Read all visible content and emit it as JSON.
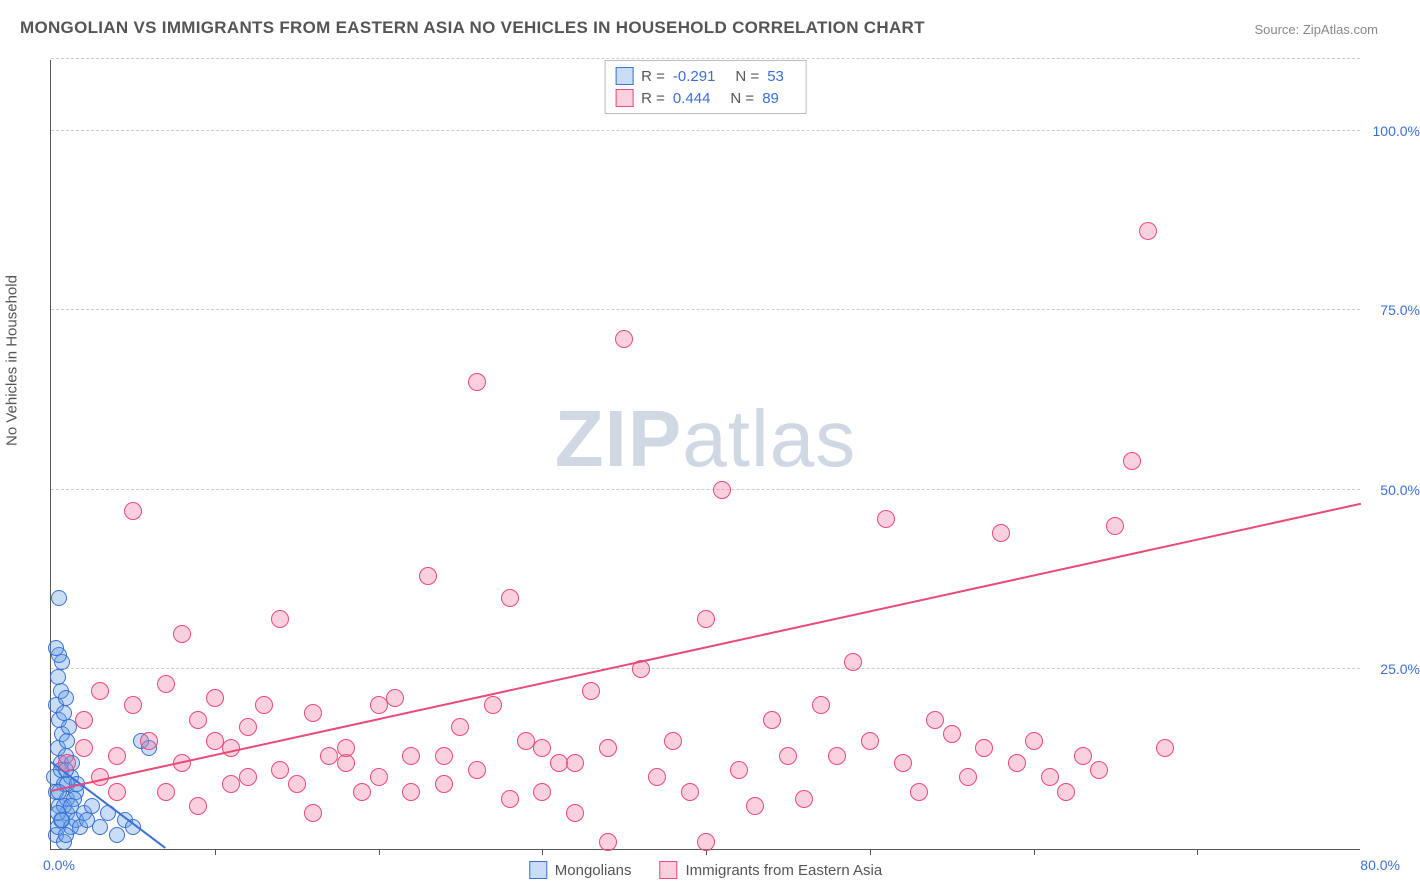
{
  "title": "MONGOLIAN VS IMMIGRANTS FROM EASTERN ASIA NO VEHICLES IN HOUSEHOLD CORRELATION CHART",
  "source": "Source: ZipAtlas.com",
  "ylabel": "No Vehicles in Household",
  "watermark_bold": "ZIP",
  "watermark_light": "atlas",
  "chart": {
    "type": "scatter",
    "xlim": [
      0,
      80
    ],
    "ylim": [
      0,
      110
    ],
    "x_tick_step": 10,
    "y_gridlines": [
      25,
      50,
      75,
      100,
      110
    ],
    "y_tick_labels": [
      "25.0%",
      "50.0%",
      "75.0%",
      "100.0%"
    ],
    "x_axis_labels": [
      {
        "val": 0,
        "text": "0.0%"
      },
      {
        "val": 80,
        "text": "80.0%"
      }
    ],
    "background_color": "#ffffff",
    "grid_color": "#cccccc",
    "series": [
      {
        "name": "Mongolians",
        "fill_color": "rgba(100,160,230,0.35)",
        "stroke_color": "#3b6fd6",
        "marker_radius": 8,
        "r_value": "-0.291",
        "n_value": "53",
        "trend": {
          "x1": 0,
          "y1": 12,
          "x2": 7,
          "y2": 0
        },
        "points": [
          [
            0.5,
            35
          ],
          [
            0.3,
            2
          ],
          [
            0.4,
            3
          ],
          [
            0.6,
            4
          ],
          [
            0.8,
            1
          ],
          [
            1.0,
            5
          ],
          [
            0.5,
            6
          ],
          [
            1.2,
            3
          ],
          [
            0.3,
            8
          ],
          [
            0.9,
            2
          ],
          [
            1.5,
            4
          ],
          [
            0.2,
            10
          ],
          [
            0.6,
            12
          ],
          [
            1.0,
            7
          ],
          [
            0.8,
            9
          ],
          [
            1.8,
            3
          ],
          [
            2.0,
            5
          ],
          [
            0.4,
            14
          ],
          [
            0.7,
            16
          ],
          [
            1.2,
            10
          ],
          [
            0.5,
            18
          ],
          [
            0.9,
            13
          ],
          [
            1.5,
            8
          ],
          [
            0.3,
            20
          ],
          [
            0.6,
            22
          ],
          [
            1.0,
            15
          ],
          [
            0.8,
            19
          ],
          [
            1.3,
            12
          ],
          [
            0.4,
            24
          ],
          [
            0.7,
            26
          ],
          [
            1.1,
            17
          ],
          [
            0.5,
            27
          ],
          [
            0.9,
            21
          ],
          [
            0.3,
            28
          ],
          [
            0.6,
            11
          ],
          [
            1.0,
            9
          ],
          [
            0.8,
            6
          ],
          [
            1.4,
            7
          ],
          [
            0.4,
            5
          ],
          [
            0.7,
            4
          ],
          [
            1.2,
            6
          ],
          [
            0.5,
            8
          ],
          [
            0.9,
            11
          ],
          [
            1.6,
            9
          ],
          [
            2.2,
            4
          ],
          [
            2.5,
            6
          ],
          [
            3.0,
            3
          ],
          [
            3.5,
            5
          ],
          [
            4.0,
            2
          ],
          [
            4.5,
            4
          ],
          [
            5.0,
            3
          ],
          [
            5.5,
            15
          ],
          [
            6.0,
            14
          ]
        ]
      },
      {
        "name": "Immigrants from Eastern Asia",
        "fill_color": "rgba(240,120,160,0.35)",
        "stroke_color": "#e84a7a",
        "marker_radius": 9,
        "r_value": "0.444",
        "n_value": "89",
        "trend": {
          "x1": 0,
          "y1": 8,
          "x2": 80,
          "y2": 48
        },
        "points": [
          [
            1,
            12
          ],
          [
            2,
            14
          ],
          [
            3,
            10
          ],
          [
            4,
            13
          ],
          [
            2,
            18
          ],
          [
            3,
            22
          ],
          [
            5,
            20
          ],
          [
            6,
            15
          ],
          [
            4,
            8
          ],
          [
            7,
            23
          ],
          [
            8,
            12
          ],
          [
            5,
            47
          ],
          [
            9,
            18
          ],
          [
            10,
            21
          ],
          [
            11,
            14
          ],
          [
            12,
            10
          ],
          [
            8,
            30
          ],
          [
            13,
            20
          ],
          [
            14,
            32
          ],
          [
            15,
            9
          ],
          [
            16,
            5
          ],
          [
            17,
            13
          ],
          [
            18,
            12
          ],
          [
            19,
            8
          ],
          [
            20,
            20
          ],
          [
            21,
            21
          ],
          [
            22,
            13
          ],
          [
            23,
            38
          ],
          [
            24,
            9
          ],
          [
            25,
            17
          ],
          [
            26,
            65
          ],
          [
            27,
            20
          ],
          [
            28,
            35
          ],
          [
            29,
            15
          ],
          [
            30,
            8
          ],
          [
            31,
            12
          ],
          [
            32,
            5
          ],
          [
            33,
            22
          ],
          [
            34,
            14
          ],
          [
            35,
            71
          ],
          [
            36,
            25
          ],
          [
            37,
            10
          ],
          [
            38,
            15
          ],
          [
            39,
            8
          ],
          [
            40,
            32
          ],
          [
            41,
            50
          ],
          [
            42,
            11
          ],
          [
            43,
            6
          ],
          [
            44,
            18
          ],
          [
            45,
            13
          ],
          [
            46,
            7
          ],
          [
            47,
            20
          ],
          [
            48,
            13
          ],
          [
            49,
            26
          ],
          [
            50,
            15
          ],
          [
            51,
            46
          ],
          [
            52,
            12
          ],
          [
            53,
            8
          ],
          [
            54,
            18
          ],
          [
            55,
            16
          ],
          [
            56,
            10
          ],
          [
            57,
            14
          ],
          [
            58,
            44
          ],
          [
            59,
            12
          ],
          [
            60,
            15
          ],
          [
            61,
            10
          ],
          [
            62,
            8
          ],
          [
            63,
            13
          ],
          [
            64,
            11
          ],
          [
            65,
            45
          ],
          [
            66,
            54
          ],
          [
            67,
            86
          ],
          [
            68,
            14
          ],
          [
            10,
            15
          ],
          [
            12,
            17
          ],
          [
            14,
            11
          ],
          [
            16,
            19
          ],
          [
            18,
            14
          ],
          [
            20,
            10
          ],
          [
            22,
            8
          ],
          [
            24,
            13
          ],
          [
            26,
            11
          ],
          [
            28,
            7
          ],
          [
            30,
            14
          ],
          [
            32,
            12
          ],
          [
            34,
            1
          ],
          [
            7,
            8
          ],
          [
            9,
            6
          ],
          [
            11,
            9
          ],
          [
            40,
            1
          ]
        ]
      }
    ]
  },
  "legend_bottom": [
    {
      "label": "Mongolians",
      "series_idx": 0
    },
    {
      "label": "Immigrants from Eastern Asia",
      "series_idx": 1
    }
  ]
}
